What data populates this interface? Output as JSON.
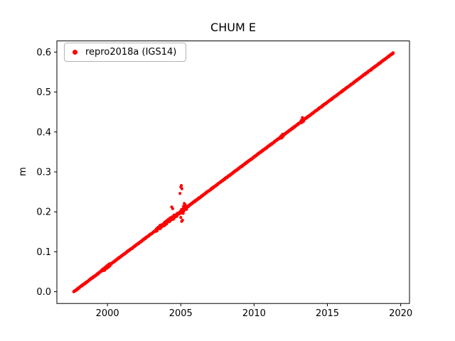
{
  "figure": {
    "title": "CHUM E",
    "background": "#ffffff"
  },
  "legend": {
    "label": "repro2018a (IGS14)",
    "marker_color": "#ff0000",
    "position": "upper left"
  },
  "chart_data": {
    "type": "scatter",
    "title": "CHUM E",
    "xlabel": "",
    "ylabel": "m",
    "xlim": [
      1996.55,
      2020.6
    ],
    "ylim": [
      -0.0295,
      0.628
    ],
    "xticks": [
      2000,
      2005,
      2010,
      2015,
      2020
    ],
    "yticks": [
      0.0,
      0.1,
      0.2,
      0.3,
      0.4,
      0.5,
      0.6
    ],
    "grid": false,
    "legend_position": "upper left",
    "series": [
      {
        "name": "repro2018a (IGS14)",
        "color": "#ff0000",
        "marker": "point",
        "model": "linear-trend",
        "x_start": 1997.7,
        "x_end": 2019.5,
        "y_start": 0.0,
        "y_end": 0.598,
        "slope_m_per_yr": 0.0274,
        "trend_samples": [
          [
            1998.0,
            0.008
          ],
          [
            2000.0,
            0.063
          ],
          [
            2002.0,
            0.118
          ],
          [
            2004.0,
            0.173
          ],
          [
            2006.0,
            0.228
          ],
          [
            2008.0,
            0.283
          ],
          [
            2010.0,
            0.337
          ],
          [
            2012.0,
            0.392
          ],
          [
            2014.0,
            0.447
          ],
          [
            2016.0,
            0.502
          ],
          [
            2018.0,
            0.557
          ],
          [
            2019.5,
            0.598
          ]
        ],
        "noise_sigma_m": 0.0008,
        "noisy_regions": [
          {
            "x_from": 1999.6,
            "x_to": 2000.2,
            "sigma": 0.0028
          },
          {
            "x_from": 2003.3,
            "x_to": 2005.4,
            "sigma": 0.0032
          },
          {
            "x_from": 2011.7,
            "x_to": 2012.0,
            "sigma": 0.0025
          },
          {
            "x_from": 2013.2,
            "x_to": 2013.45,
            "sigma": 0.0025
          }
        ],
        "outliers": [
          [
            2004.38,
            0.212
          ],
          [
            2004.45,
            0.208
          ],
          [
            2004.95,
            0.246
          ],
          [
            2005.0,
            0.262
          ],
          [
            2005.04,
            0.266
          ],
          [
            2005.08,
            0.258
          ],
          [
            2005.18,
            0.214
          ],
          [
            2005.24,
            0.221
          ],
          [
            2005.3,
            0.218
          ],
          [
            2005.0,
            0.186
          ],
          [
            2005.06,
            0.176
          ],
          [
            2005.12,
            0.179
          ],
          [
            2005.16,
            0.196
          ],
          [
            2011.88,
            0.385
          ],
          [
            2013.3,
            0.436
          ],
          [
            2013.33,
            0.433
          ]
        ]
      }
    ]
  }
}
